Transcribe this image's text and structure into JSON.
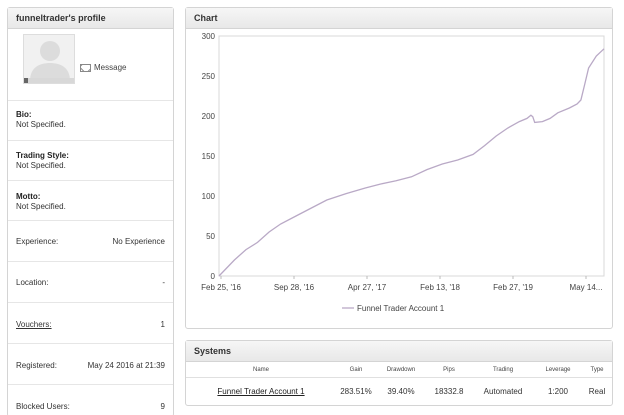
{
  "profile": {
    "title": "funneltrader's profile",
    "message_label": "Message",
    "bio_label": "Bio:",
    "bio_value": "Not Specified.",
    "style_label": "Trading Style:",
    "style_value": "Not Specified.",
    "motto_label": "Motto:",
    "motto_value": "Not Specified.",
    "experience_label": "Experience:",
    "experience_value": "No Experience",
    "location_label": "Location:",
    "location_value": "-",
    "vouchers_label": "Vouchers:",
    "vouchers_value": "1",
    "registered_label": "Registered:",
    "registered_value": "May 24 2016 at 21:39",
    "blocked_label": "Blocked Users:",
    "blocked_value": "9"
  },
  "chart": {
    "title": "Chart",
    "line_color": "#b9a9c6"
  },
  "chart_data": {
    "type": "line",
    "x_tick_labels": [
      "Feb 25, '16",
      "Sep 28, '16",
      "Apr 27, '17",
      "Feb 13, '18",
      "Feb 27, '19",
      "May 14..."
    ],
    "y_ticks": [
      0,
      50,
      100,
      150,
      200,
      250,
      300
    ],
    "ylim": [
      0,
      300
    ],
    "series": [
      {
        "name": "Funnel Trader Account 1",
        "points": [
          [
            0,
            0
          ],
          [
            0.02,
            10
          ],
          [
            0.04,
            20
          ],
          [
            0.07,
            33
          ],
          [
            0.1,
            42
          ],
          [
            0.13,
            55
          ],
          [
            0.16,
            65
          ],
          [
            0.2,
            75
          ],
          [
            0.24,
            85
          ],
          [
            0.28,
            95
          ],
          [
            0.33,
            103
          ],
          [
            0.38,
            110
          ],
          [
            0.42,
            115
          ],
          [
            0.46,
            119
          ],
          [
            0.5,
            124
          ],
          [
            0.54,
            133
          ],
          [
            0.58,
            140
          ],
          [
            0.62,
            145
          ],
          [
            0.66,
            152
          ],
          [
            0.69,
            163
          ],
          [
            0.72,
            175
          ],
          [
            0.75,
            185
          ],
          [
            0.78,
            193
          ],
          [
            0.8,
            197
          ],
          [
            0.81,
            201
          ],
          [
            0.815,
            199
          ],
          [
            0.82,
            192
          ],
          [
            0.84,
            193
          ],
          [
            0.86,
            197
          ],
          [
            0.88,
            204
          ],
          [
            0.91,
            210
          ],
          [
            0.93,
            215
          ],
          [
            0.94,
            220
          ],
          [
            0.95,
            240
          ],
          [
            0.96,
            260
          ],
          [
            0.98,
            275
          ],
          [
            1.0,
            284
          ]
        ]
      }
    ]
  },
  "systems": {
    "title": "Systems",
    "headers": [
      "Name",
      "Gain",
      "Drawdown",
      "Pips",
      "Trading",
      "Leverage",
      "Type"
    ],
    "rows": [
      [
        "Funnel Trader Account 1",
        "283.51%",
        "39.40%",
        "18332.8",
        "Automated",
        "1:200",
        "Real"
      ]
    ]
  }
}
